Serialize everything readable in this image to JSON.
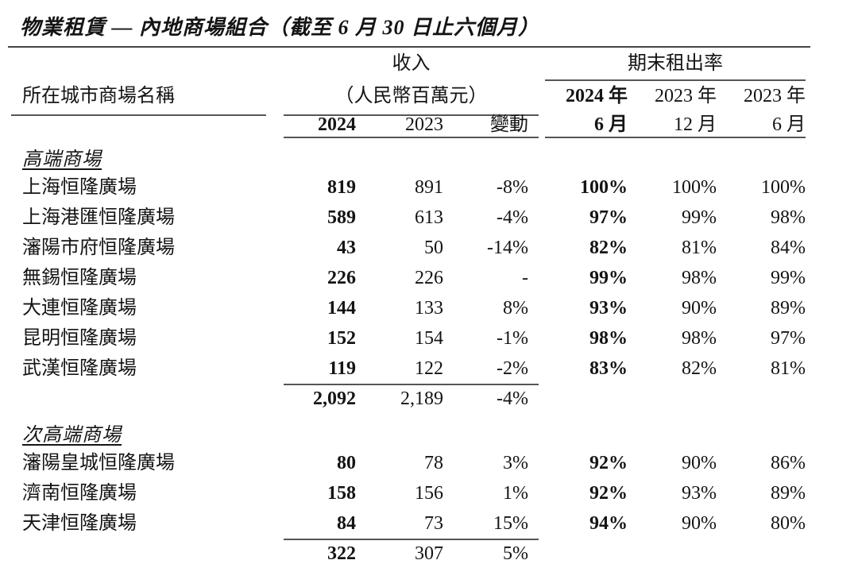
{
  "title": "物業租賃 — 內地商場組合（截至 6 月 30 日止六個月）",
  "table": {
    "columns": {
      "name": "所在城市商場名稱",
      "revenue_title": "收入",
      "revenue_unit": "（人民幣百萬元）",
      "revenue_cols": [
        "2024",
        "2023",
        "變動"
      ],
      "occupancy_title": "期末租出率",
      "occupancy_cols": [
        {
          "year": "2024 年",
          "month": "6 月"
        },
        {
          "year": "2023 年",
          "month": "12 月"
        },
        {
          "year": "2023 年",
          "month": "6 月"
        }
      ]
    },
    "sections": [
      {
        "label": "高端商場",
        "rows": [
          {
            "name": "上海恒隆廣場",
            "values": [
              "819",
              "891",
              "-8%",
              "100%",
              "100%",
              "100%"
            ]
          },
          {
            "name": "上海港匯恒隆廣場",
            "values": [
              "589",
              "613",
              "-4%",
              "97%",
              "99%",
              "98%"
            ]
          },
          {
            "name": "瀋陽市府恒隆廣場",
            "values": [
              "43",
              "50",
              "-14%",
              "82%",
              "81%",
              "84%"
            ]
          },
          {
            "name": "無錫恒隆廣場",
            "values": [
              "226",
              "226",
              "-",
              "99%",
              "98%",
              "99%"
            ]
          },
          {
            "name": "大連恒隆廣場",
            "values": [
              "144",
              "133",
              "8%",
              "93%",
              "90%",
              "89%"
            ]
          },
          {
            "name": "昆明恒隆廣場",
            "values": [
              "152",
              "154",
              "-1%",
              "98%",
              "98%",
              "97%"
            ]
          },
          {
            "name": "武漢恒隆廣場",
            "values": [
              "119",
              "122",
              "-2%",
              "83%",
              "82%",
              "81%"
            ]
          }
        ],
        "subtotal": [
          "2,092",
          "2,189",
          "-4%"
        ]
      },
      {
        "label": "次高端商場",
        "rows": [
          {
            "name": "瀋陽皇城恒隆廣場",
            "values": [
              "80",
              "78",
              "3%",
              "92%",
              "90%",
              "86%"
            ]
          },
          {
            "name": "濟南恒隆廣場",
            "values": [
              "158",
              "156",
              "1%",
              "92%",
              "93%",
              "89%"
            ]
          },
          {
            "name": "天津恒隆廣場",
            "values": [
              "84",
              "73",
              "15%",
              "94%",
              "90%",
              "80%"
            ]
          }
        ],
        "subtotal": [
          "322",
          "307",
          "5%"
        ]
      }
    ]
  },
  "colors": {
    "text": "#141414",
    "rule": "#565656",
    "background": "#ffffff"
  }
}
